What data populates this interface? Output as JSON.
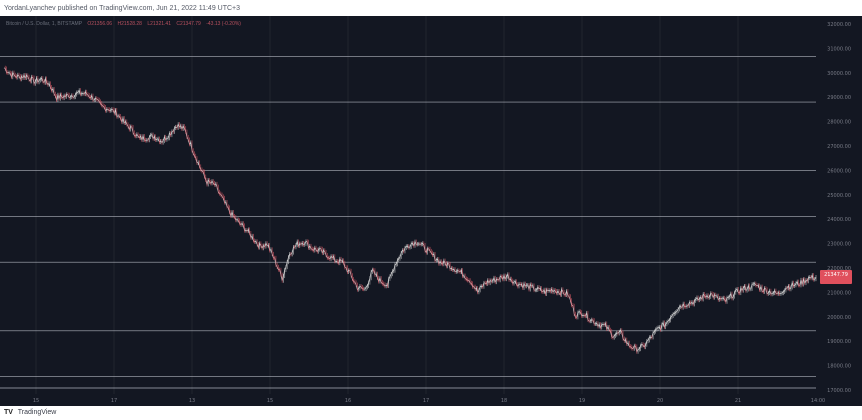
{
  "header": {
    "attribution": "YordanLyanchev published on TradingView.com, Jun 21, 2022 11:49 UTC+3"
  },
  "legend": {
    "pair": "Bitcoin / U.S. Dollar, 1, BITSTAMP",
    "open": "O21356.06",
    "high": "H21528.28",
    "low": "L21321.41",
    "close": "C21347.79",
    "change": "-43.13 (-0.20%)"
  },
  "brand": {
    "logo": "TV",
    "name": "TradingView"
  },
  "chart_data": {
    "type": "line",
    "title": "",
    "xlabel": "",
    "ylabel": "",
    "x_tick_labels": [
      "15",
      "17",
      "13",
      "15",
      "16",
      "17",
      "18",
      "19",
      "20",
      "21"
    ],
    "y_tick_labels": [
      "32000.00",
      "31000.00",
      "30000.00",
      "29000.00",
      "28000.00",
      "27000.00",
      "26000.00",
      "25000.00",
      "24000.00",
      "23000.00",
      "22000.00",
      "21000.00",
      "20000.00",
      "19000.00",
      "18000.00",
      "17000.00"
    ],
    "time_label": "14:00",
    "ylim": [
      16500,
      32500
    ],
    "horizontal_levels": [
      31000,
      29000,
      26000,
      24000,
      22000,
      19000,
      17000,
      16500
    ],
    "series": [
      {
        "values": [
          30500,
          30200,
          30100,
          30150,
          29900,
          30000,
          29800,
          29200,
          29250,
          29300,
          29400,
          29350,
          29150,
          28800,
          28700,
          28500,
          28100,
          27800,
          27400,
          27450,
          27500,
          27300,
          27600,
          28000,
          27800,
          27000,
          26200,
          25500,
          25400,
          24800,
          24200,
          23800,
          23500,
          23100,
          22700,
          22800,
          22100,
          21300,
          22400,
          22800,
          22900,
          22600,
          22500,
          22300,
          22100,
          22000,
          21500,
          20900,
          20800,
          21600,
          21200,
          21000,
          21900,
          22500,
          22800,
          22900,
          22600,
          22300,
          22000,
          21900,
          21700,
          21500,
          21200,
          20700,
          21100,
          21200,
          21300,
          21400,
          21100,
          21000,
          20900,
          20800,
          20700,
          20800,
          20700,
          20600,
          19700,
          19800,
          19500,
          19300,
          19200,
          18800,
          18900,
          18400,
          18200,
          18300,
          18700,
          19100,
          19300,
          19800,
          20100,
          20200,
          20300,
          20500,
          20600,
          20400,
          20300,
          20600,
          20800,
          20900,
          21000,
          20800,
          20700,
          20600,
          20900,
          21000,
          21100,
          21300,
          21350
        ],
        "color": "#d7d7d7",
        "down_color": "#e05a67",
        "last_value": "21347.79"
      }
    ]
  },
  "colors": {
    "background": "#131722",
    "grid": "#2a2e39",
    "level_line": "#c9cdd6",
    "axis_text": "#787b86",
    "price_tag": "#e0505d"
  }
}
